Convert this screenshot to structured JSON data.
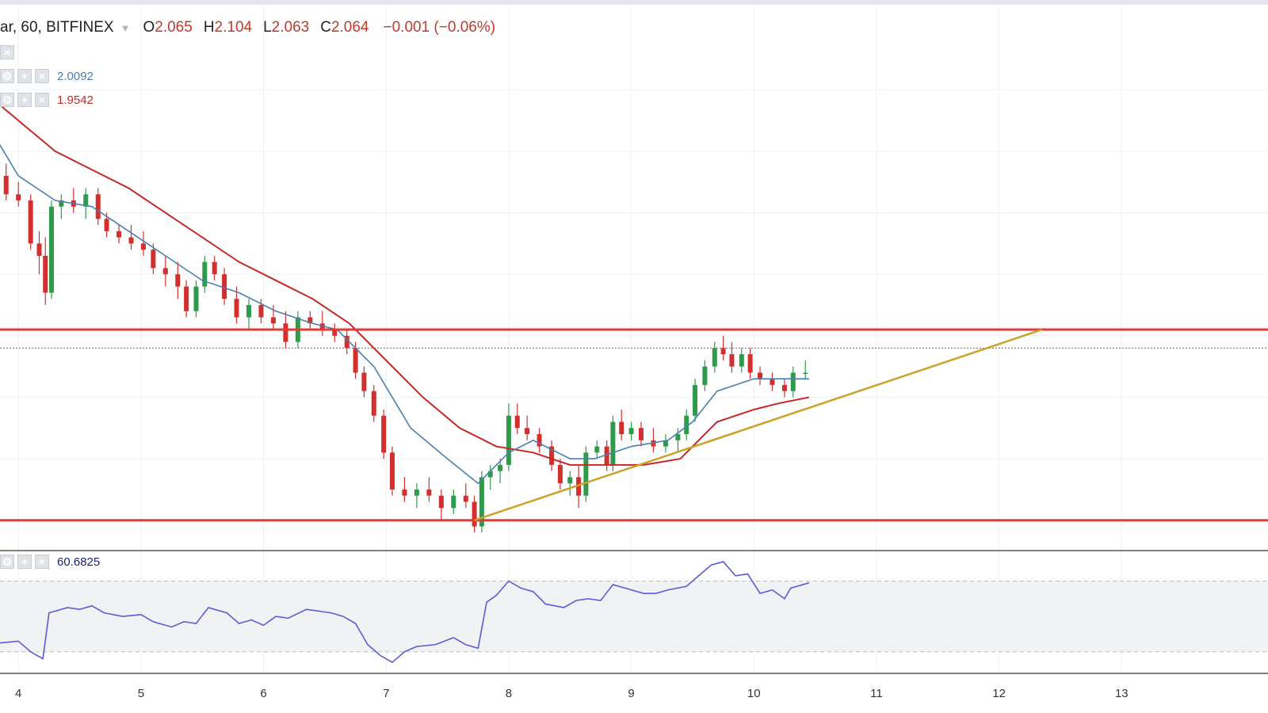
{
  "header": {
    "symbol": "ar, 60, BITFINEX",
    "open_label": "O",
    "open": "2.065",
    "high_label": "H",
    "high": "2.104",
    "low_label": "L",
    "low": "2.063",
    "close_label": "C",
    "close": "2.064",
    "change": "−0.001 (−0.06%)"
  },
  "indicators": [
    {
      "value": "2.0092",
      "color": "#4a7fb0"
    },
    {
      "value": "1.9542",
      "color": "#c62828"
    },
    {
      "value": "60.6825",
      "color": "#1a237e"
    }
  ],
  "colors": {
    "up": "#2e9b4a",
    "down": "#d32f2f",
    "ema_fast": "#4a7fb0",
    "ema_slow": "#c62828",
    "level": "#e53935",
    "trend": "#c9a227",
    "rsi": "#5b5bd6",
    "grid": "#eef0f2"
  },
  "chart_data": {
    "type": "line",
    "x_ticks": [
      "4",
      "5",
      "6",
      "7",
      "8",
      "9",
      "10",
      "11",
      "12",
      "13"
    ],
    "candles": [
      [
        3.7,
        2.18,
        2.2,
        2.16,
        2.17
      ],
      [
        3.8,
        2.17,
        2.19,
        2.15,
        2.16
      ],
      [
        3.9,
        2.16,
        2.18,
        2.12,
        2.13
      ],
      [
        4.0,
        2.13,
        2.15,
        2.11,
        2.12
      ],
      [
        4.1,
        2.12,
        2.13,
        2.04,
        2.05
      ],
      [
        4.17,
        2.05,
        2.07,
        2.0,
        2.03
      ],
      [
        4.22,
        2.03,
        2.06,
        1.95,
        1.97
      ],
      [
        4.27,
        1.97,
        2.12,
        1.96,
        2.11
      ],
      [
        4.35,
        2.11,
        2.13,
        2.09,
        2.12
      ],
      [
        4.45,
        2.12,
        2.14,
        2.1,
        2.11
      ],
      [
        4.55,
        2.11,
        2.14,
        2.09,
        2.13
      ],
      [
        4.65,
        2.13,
        2.14,
        2.08,
        2.09
      ],
      [
        4.72,
        2.09,
        2.1,
        2.06,
        2.07
      ],
      [
        4.82,
        2.07,
        2.08,
        2.05,
        2.06
      ],
      [
        4.92,
        2.06,
        2.08,
        2.04,
        2.05
      ],
      [
        5.02,
        2.05,
        2.07,
        2.03,
        2.04
      ],
      [
        5.1,
        2.04,
        2.05,
        2.0,
        2.01
      ],
      [
        5.2,
        2.01,
        2.03,
        1.98,
        2.0
      ],
      [
        5.3,
        2.0,
        2.02,
        1.96,
        1.98
      ],
      [
        5.37,
        1.98,
        1.99,
        1.93,
        1.94
      ],
      [
        5.45,
        1.94,
        1.99,
        1.93,
        1.98
      ],
      [
        5.52,
        1.98,
        2.03,
        1.97,
        2.02
      ],
      [
        5.6,
        2.02,
        2.03,
        1.99,
        2.0
      ],
      [
        5.68,
        2.0,
        2.01,
        1.95,
        1.96
      ],
      [
        5.78,
        1.96,
        1.98,
        1.92,
        1.93
      ],
      [
        5.88,
        1.93,
        1.96,
        1.91,
        1.95
      ],
      [
        5.98,
        1.95,
        1.96,
        1.92,
        1.93
      ],
      [
        6.08,
        1.93,
        1.95,
        1.91,
        1.92
      ],
      [
        6.18,
        1.92,
        1.94,
        1.88,
        1.89
      ],
      [
        6.28,
        1.89,
        1.94,
        1.88,
        1.93
      ],
      [
        6.38,
        1.93,
        1.94,
        1.91,
        1.92
      ],
      [
        6.48,
        1.92,
        1.94,
        1.9,
        1.91
      ],
      [
        6.58,
        1.91,
        1.92,
        1.89,
        1.9
      ],
      [
        6.68,
        1.9,
        1.91,
        1.87,
        1.88
      ],
      [
        6.75,
        1.88,
        1.89,
        1.83,
        1.84
      ],
      [
        6.82,
        1.84,
        1.85,
        1.8,
        1.81
      ],
      [
        6.9,
        1.81,
        1.82,
        1.76,
        1.77
      ],
      [
        6.98,
        1.77,
        1.78,
        1.7,
        1.71
      ],
      [
        7.05,
        1.71,
        1.72,
        1.64,
        1.65
      ],
      [
        7.15,
        1.65,
        1.67,
        1.63,
        1.64
      ],
      [
        7.25,
        1.64,
        1.66,
        1.62,
        1.65
      ],
      [
        7.35,
        1.65,
        1.67,
        1.63,
        1.64
      ],
      [
        7.45,
        1.64,
        1.65,
        1.6,
        1.62
      ],
      [
        7.55,
        1.62,
        1.65,
        1.61,
        1.64
      ],
      [
        7.65,
        1.64,
        1.66,
        1.62,
        1.63
      ],
      [
        7.72,
        1.63,
        1.64,
        1.58,
        1.59
      ],
      [
        7.78,
        1.59,
        1.68,
        1.58,
        1.67
      ],
      [
        7.85,
        1.67,
        1.69,
        1.65,
        1.68
      ],
      [
        7.93,
        1.68,
        1.7,
        1.66,
        1.69
      ],
      [
        8.0,
        1.69,
        1.79,
        1.68,
        1.77
      ],
      [
        8.07,
        1.77,
        1.79,
        1.74,
        1.75
      ],
      [
        8.15,
        1.75,
        1.77,
        1.73,
        1.74
      ],
      [
        8.25,
        1.74,
        1.75,
        1.71,
        1.72
      ],
      [
        8.35,
        1.72,
        1.73,
        1.68,
        1.69
      ],
      [
        8.42,
        1.69,
        1.7,
        1.65,
        1.66
      ],
      [
        8.5,
        1.66,
        1.68,
        1.64,
        1.67
      ],
      [
        8.57,
        1.67,
        1.69,
        1.62,
        1.64
      ],
      [
        8.63,
        1.64,
        1.72,
        1.63,
        1.71
      ],
      [
        8.72,
        1.71,
        1.73,
        1.7,
        1.72
      ],
      [
        8.8,
        1.72,
        1.73,
        1.68,
        1.69
      ],
      [
        8.85,
        1.69,
        1.77,
        1.68,
        1.76
      ],
      [
        8.92,
        1.76,
        1.78,
        1.73,
        1.74
      ],
      [
        9.0,
        1.74,
        1.76,
        1.73,
        1.75
      ],
      [
        9.08,
        1.75,
        1.76,
        1.72,
        1.73
      ],
      [
        9.18,
        1.73,
        1.75,
        1.71,
        1.72
      ],
      [
        9.28,
        1.72,
        1.74,
        1.71,
        1.73
      ],
      [
        9.38,
        1.73,
        1.75,
        1.71,
        1.74
      ],
      [
        9.45,
        1.74,
        1.78,
        1.73,
        1.77
      ],
      [
        9.52,
        1.77,
        1.83,
        1.76,
        1.82
      ],
      [
        9.6,
        1.82,
        1.86,
        1.81,
        1.85
      ],
      [
        9.68,
        1.85,
        1.89,
        1.84,
        1.88
      ],
      [
        9.75,
        1.88,
        1.9,
        1.86,
        1.87
      ],
      [
        9.82,
        1.87,
        1.89,
        1.84,
        1.85
      ],
      [
        9.9,
        1.85,
        1.88,
        1.84,
        1.87
      ],
      [
        9.97,
        1.87,
        1.88,
        1.83,
        1.84
      ],
      [
        10.05,
        1.84,
        1.85,
        1.82,
        1.83
      ],
      [
        10.15,
        1.83,
        1.84,
        1.81,
        1.82
      ],
      [
        10.25,
        1.82,
        1.83,
        1.8,
        1.81
      ],
      [
        10.32,
        1.81,
        1.85,
        1.8,
        1.84
      ],
      [
        10.42,
        1.84,
        1.86,
        1.83,
        1.84
      ]
    ],
    "ema_fast": [
      [
        3.7,
        2.26
      ],
      [
        4.0,
        2.16
      ],
      [
        4.3,
        2.12
      ],
      [
        4.6,
        2.11
      ],
      [
        4.9,
        2.07
      ],
      [
        5.2,
        2.03
      ],
      [
        5.5,
        1.99
      ],
      [
        5.8,
        1.97
      ],
      [
        6.1,
        1.94
      ],
      [
        6.4,
        1.92
      ],
      [
        6.6,
        1.91
      ],
      [
        6.9,
        1.85
      ],
      [
        7.2,
        1.75
      ],
      [
        7.5,
        1.7
      ],
      [
        7.75,
        1.66
      ],
      [
        8.0,
        1.71
      ],
      [
        8.2,
        1.73
      ],
      [
        8.5,
        1.7
      ],
      [
        8.7,
        1.7
      ],
      [
        9.0,
        1.72
      ],
      [
        9.3,
        1.73
      ],
      [
        9.5,
        1.76
      ],
      [
        9.7,
        1.81
      ],
      [
        10.0,
        1.83
      ],
      [
        10.2,
        1.83
      ],
      [
        10.45,
        1.83
      ]
    ],
    "ema_slow": [
      [
        3.7,
        2.3
      ],
      [
        4.0,
        2.25
      ],
      [
        4.3,
        2.2
      ],
      [
        4.6,
        2.17
      ],
      [
        4.9,
        2.14
      ],
      [
        5.2,
        2.1
      ],
      [
        5.5,
        2.06
      ],
      [
        5.8,
        2.02
      ],
      [
        6.1,
        1.99
      ],
      [
        6.4,
        1.96
      ],
      [
        6.7,
        1.92
      ],
      [
        7.0,
        1.86
      ],
      [
        7.3,
        1.8
      ],
      [
        7.6,
        1.75
      ],
      [
        7.9,
        1.72
      ],
      [
        8.2,
        1.71
      ],
      [
        8.5,
        1.69
      ],
      [
        8.8,
        1.69
      ],
      [
        9.1,
        1.69
      ],
      [
        9.4,
        1.7
      ],
      [
        9.7,
        1.76
      ],
      [
        10.0,
        1.78
      ],
      [
        10.2,
        1.79
      ],
      [
        10.45,
        1.8
      ]
    ],
    "levels": [
      1.91,
      1.6
    ],
    "trendline": [
      [
        7.72,
        1.6
      ],
      [
        12.35,
        1.91
      ]
    ],
    "last_price": 1.88,
    "rsi": [
      [
        3.7,
        38
      ],
      [
        3.85,
        35
      ],
      [
        4.0,
        36
      ],
      [
        4.1,
        30
      ],
      [
        4.2,
        26
      ],
      [
        4.25,
        52
      ],
      [
        4.4,
        55
      ],
      [
        4.5,
        54
      ],
      [
        4.6,
        56
      ],
      [
        4.7,
        52
      ],
      [
        4.85,
        50
      ],
      [
        5.0,
        51
      ],
      [
        5.1,
        47
      ],
      [
        5.25,
        44
      ],
      [
        5.35,
        47
      ],
      [
        5.45,
        46
      ],
      [
        5.55,
        55
      ],
      [
        5.7,
        52
      ],
      [
        5.8,
        46
      ],
      [
        5.9,
        48
      ],
      [
        6.0,
        45
      ],
      [
        6.1,
        50
      ],
      [
        6.2,
        49
      ],
      [
        6.35,
        54
      ],
      [
        6.45,
        53
      ],
      [
        6.55,
        52
      ],
      [
        6.65,
        50
      ],
      [
        6.75,
        46
      ],
      [
        6.85,
        34
      ],
      [
        6.95,
        28
      ],
      [
        7.05,
        24
      ],
      [
        7.15,
        30
      ],
      [
        7.25,
        33
      ],
      [
        7.4,
        34
      ],
      [
        7.55,
        38
      ],
      [
        7.65,
        34
      ],
      [
        7.75,
        32
      ],
      [
        7.82,
        58
      ],
      [
        7.9,
        62
      ],
      [
        8.0,
        70
      ],
      [
        8.1,
        66
      ],
      [
        8.2,
        64
      ],
      [
        8.3,
        57
      ],
      [
        8.45,
        55
      ],
      [
        8.55,
        59
      ],
      [
        8.65,
        60
      ],
      [
        8.75,
        59
      ],
      [
        8.85,
        68
      ],
      [
        8.95,
        66
      ],
      [
        9.1,
        63
      ],
      [
        9.2,
        63
      ],
      [
        9.3,
        65
      ],
      [
        9.45,
        67
      ],
      [
        9.55,
        73
      ],
      [
        9.65,
        79
      ],
      [
        9.75,
        81
      ],
      [
        9.85,
        73
      ],
      [
        9.95,
        74
      ],
      [
        10.05,
        63
      ],
      [
        10.15,
        65
      ],
      [
        10.25,
        60
      ],
      [
        10.3,
        66
      ],
      [
        10.4,
        68
      ],
      [
        10.45,
        69
      ]
    ],
    "rsi_bands": [
      70,
      30
    ],
    "price_range": [
      1.57,
      2.33
    ],
    "rsi_range": [
      20,
      85
    ],
    "xlim": [
      3.85,
      14.0
    ]
  }
}
